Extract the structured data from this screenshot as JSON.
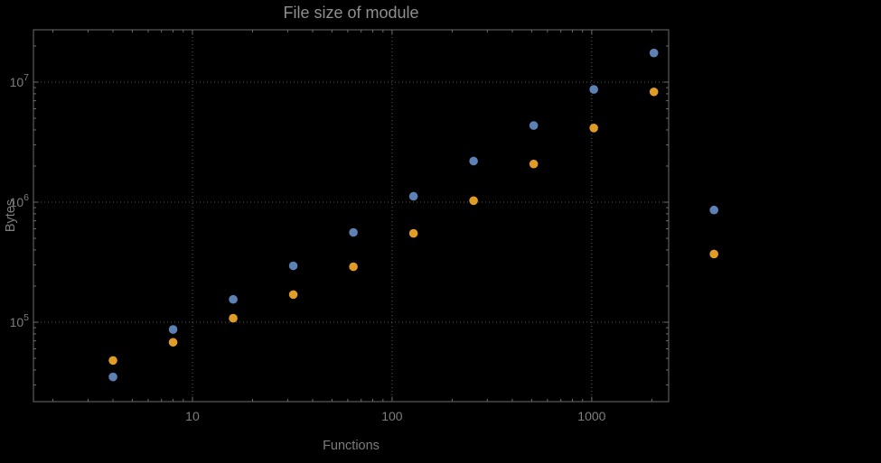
{
  "chart_data": {
    "type": "scatter",
    "title": "File size of module",
    "xlabel": "Functions",
    "ylabel": "Bytes",
    "x_scale": "log",
    "y_scale": "log",
    "grid": "dotted",
    "legend": "none",
    "xlim": [
      1.598,
      2428
    ],
    "ylim": [
      21800,
      27300000
    ],
    "x_ticks": [
      10,
      100,
      1000
    ],
    "x_tick_labels": [
      "10",
      "100",
      "1000"
    ],
    "y_ticks": [
      100000,
      1000000,
      10000000
    ],
    "y_tick_exponents": [
      5,
      6,
      7
    ],
    "x": [
      4,
      8,
      16,
      32,
      64,
      128,
      256,
      512,
      1024,
      2048,
      4096
    ],
    "series": [
      {
        "name": "series-blue",
        "color": "#5e81b5",
        "values": [
          35000,
          87000,
          155000,
          295000,
          560000,
          1120000,
          2200000,
          4350000,
          8700000,
          17500000,
          860000
        ]
      },
      {
        "name": "series-orange",
        "color": "#e09c24",
        "values": [
          48000,
          68000,
          108000,
          170000,
          290000,
          550000,
          1030000,
          2080000,
          4150000,
          8300000,
          370000
        ]
      }
    ],
    "clip_points": false
  },
  "style": {
    "background": "#000000",
    "frame_color": "#6b6b6b",
    "grid_color": "#585858",
    "tick_label_color": "#7d7d7d",
    "title_color": "#8f8f8f"
  }
}
